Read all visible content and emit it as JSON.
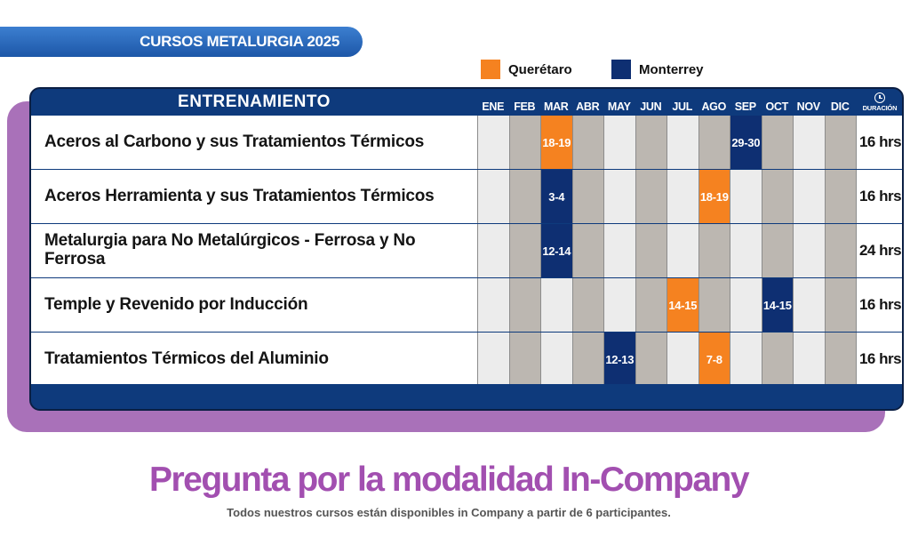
{
  "banner": {
    "title": "CURSOS METALURGIA 2025"
  },
  "legend": {
    "items": [
      {
        "label": "Querétaro",
        "color": "#f58220"
      },
      {
        "label": "Monterrey",
        "color": "#0e2f72"
      }
    ]
  },
  "table": {
    "header_title": "ENTRENAMIENTO",
    "months": [
      "ENE",
      "FEB",
      "MAR",
      "ABR",
      "MAY",
      "JUN",
      "JUL",
      "AGO",
      "SEP",
      "OCT",
      "NOV",
      "DIC"
    ],
    "duration_header": "DURACIÓN",
    "rows": [
      {
        "course": "Aceros al Carbono y sus Tratamientos Térmicos",
        "duration": "16 hrs",
        "sessions": [
          {
            "month": "MAR",
            "dates": "18-19",
            "location": "Querétaro"
          },
          {
            "month": "SEP",
            "dates": "29-30",
            "location": "Monterrey"
          }
        ]
      },
      {
        "course": "Aceros Herramienta y sus Tratamientos Térmicos",
        "duration": "16 hrs",
        "sessions": [
          {
            "month": "MAR",
            "dates": "3-4",
            "location": "Monterrey"
          },
          {
            "month": "AGO",
            "dates": "18-19",
            "location": "Querétaro"
          }
        ]
      },
      {
        "course": "Metalurgia para No Metalúrgicos - Ferrosa y No Ferrosa",
        "duration": "24 hrs",
        "sessions": [
          {
            "month": "MAR",
            "dates": "12-14",
            "location": "Monterrey"
          }
        ]
      },
      {
        "course": "Temple y Revenido por Inducción",
        "duration": "16 hrs",
        "sessions": [
          {
            "month": "JUL",
            "dates": "14-15",
            "location": "Querétaro"
          },
          {
            "month": "OCT",
            "dates": "14-15",
            "location": "Monterrey"
          }
        ]
      },
      {
        "course": "Tratamientos Térmicos del Aluminio",
        "duration": "16 hrs",
        "sessions": [
          {
            "month": "MAY",
            "dates": "12-13",
            "location": "Monterrey"
          },
          {
            "month": "AGO",
            "dates": "7-8",
            "location": "Querétaro"
          }
        ]
      }
    ]
  },
  "cta": {
    "headline": "Pregunta por la modalidad In-Company",
    "subtext": "Todos nuestros cursos están disponibles in Company a partir de 6 participantes."
  }
}
